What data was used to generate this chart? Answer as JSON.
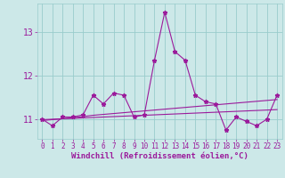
{
  "xlabel": "Windchill (Refroidissement éolien,°C)",
  "x": [
    0,
    1,
    2,
    3,
    4,
    5,
    6,
    7,
    8,
    9,
    10,
    11,
    12,
    13,
    14,
    15,
    16,
    17,
    18,
    19,
    20,
    21,
    22,
    23
  ],
  "y_main": [
    11.0,
    10.85,
    11.05,
    11.05,
    11.1,
    11.55,
    11.35,
    11.6,
    11.55,
    11.05,
    11.1,
    12.35,
    13.45,
    12.55,
    12.35,
    11.55,
    11.4,
    11.35,
    10.75,
    11.05,
    10.95,
    10.85,
    11.0,
    11.55
  ],
  "y_trend1": [
    10.97,
    10.99,
    11.01,
    11.03,
    11.06,
    11.09,
    11.11,
    11.13,
    11.15,
    11.17,
    11.19,
    11.21,
    11.23,
    11.25,
    11.27,
    11.29,
    11.31,
    11.33,
    11.35,
    11.37,
    11.39,
    11.41,
    11.43,
    11.45
  ],
  "y_trend2": [
    10.99,
    11.0,
    11.01,
    11.02,
    11.03,
    11.04,
    11.05,
    11.06,
    11.07,
    11.08,
    11.09,
    11.1,
    11.11,
    11.12,
    11.13,
    11.14,
    11.15,
    11.16,
    11.17,
    11.18,
    11.19,
    11.2,
    11.21,
    11.22
  ],
  "line_color": "#9b1a9b",
  "bg_color": "#cce8e8",
  "grid_color": "#99cccc",
  "ylim_min": 10.55,
  "ylim_max": 13.65,
  "yticks": [
    11,
    12,
    13
  ],
  "xticks": [
    0,
    1,
    2,
    3,
    4,
    5,
    6,
    7,
    8,
    9,
    10,
    11,
    12,
    13,
    14,
    15,
    16,
    17,
    18,
    19,
    20,
    21,
    22,
    23
  ],
  "tick_fontsize": 5.5,
  "xlabel_fontsize": 6.5,
  "marker": "*",
  "marker_size": 3.5,
  "linewidth": 0.8
}
